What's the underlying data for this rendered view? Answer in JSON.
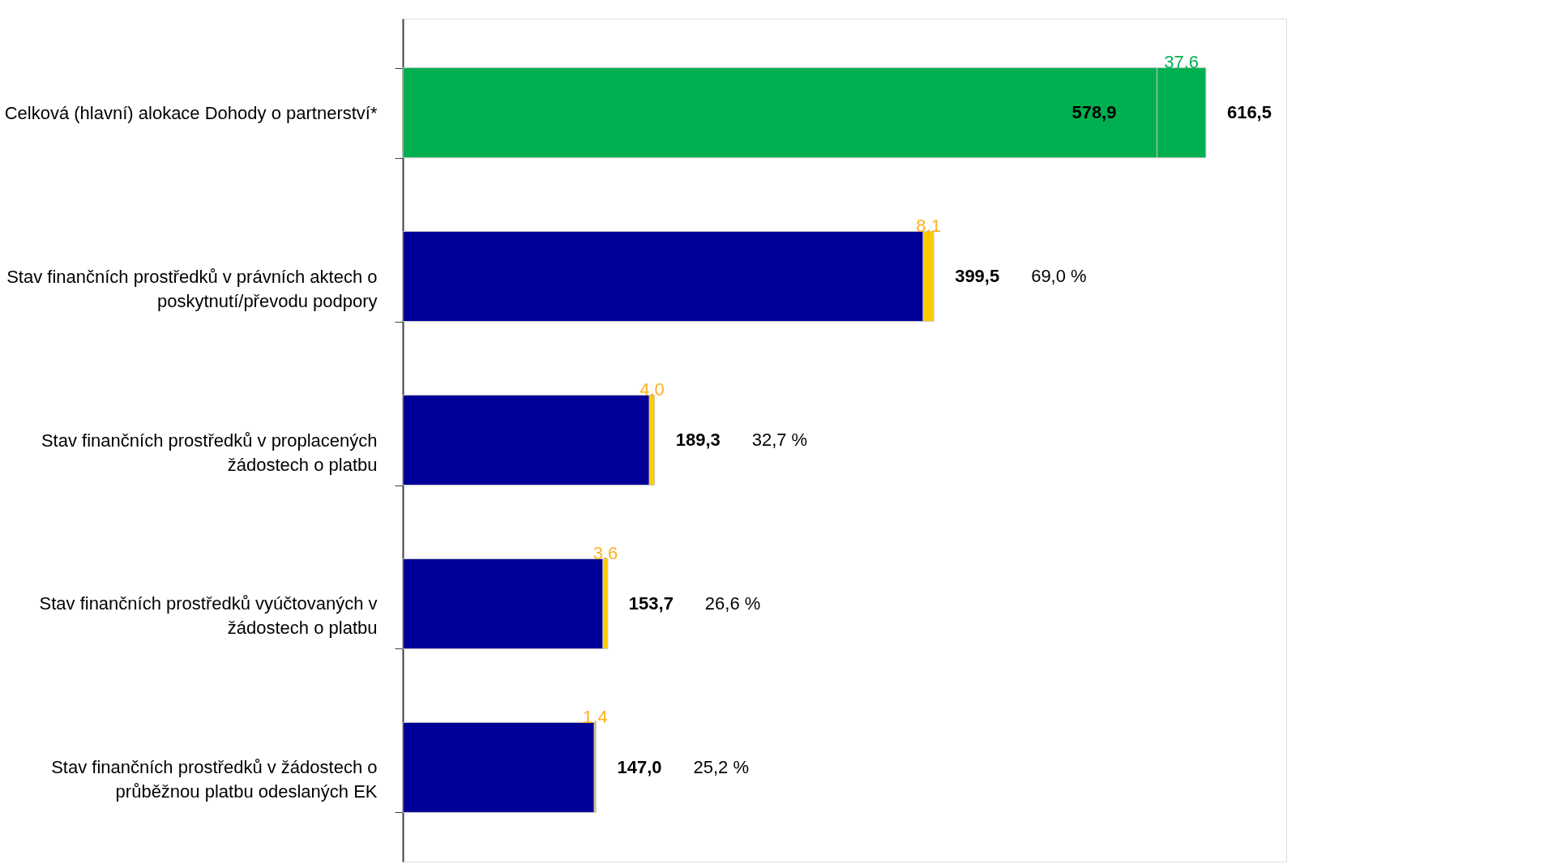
{
  "chart_data": {
    "type": "bar",
    "orientation": "horizontal",
    "stacked": true,
    "grid": false,
    "categories": [
      "Celková (hlavní) alokace Dohody o partnerství*",
      "Stav finančních prostředků v právních aktech o poskytnutí/převodu podpory",
      "Stav finančních prostředků v proplacených žádostech o platbu",
      "Stav finančních prostředků vyúčtovaných v žádostech o platbu",
      "Stav finančních prostředků v žádostech o průběžnou platbu odeslaných EK"
    ],
    "series": [
      {
        "colors": [
          "#00b050",
          "#000099",
          "#000099",
          "#000099",
          "#000099"
        ],
        "values": [
          578.9,
          399.5,
          189.3,
          153.7,
          147.0
        ],
        "value_labels": [
          "578,9",
          "399,5",
          "189,3",
          "153,7",
          "147,0"
        ]
      },
      {
        "colors": [
          "#00b050",
          "#ffcc00",
          "#ffcc00",
          "#ffcc00",
          "#ffcc00"
        ],
        "values": [
          37.6,
          8.1,
          4.0,
          3.6,
          1.4
        ],
        "value_labels": [
          "37,6",
          "8,1",
          "4,0",
          "3,6",
          "1,4"
        ]
      }
    ],
    "totals": [
      "616,5",
      null,
      null,
      null,
      null
    ],
    "annotations": [
      "69,0 %",
      "32,7 %",
      "26,6 %",
      "25,2 %"
    ]
  }
}
